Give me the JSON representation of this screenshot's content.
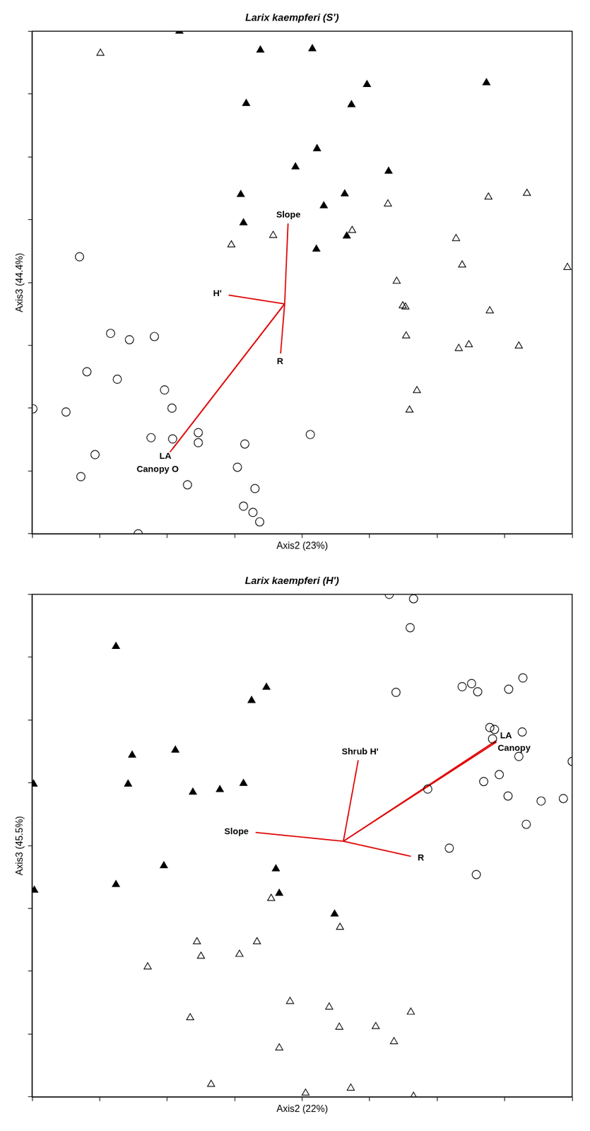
{
  "chart_data": [
    {
      "type": "scatter",
      "title": "Larix kaempferi (S')",
      "x_label": "Axis2 (23%)",
      "y_label": "Axis3 (44.4%)",
      "xlim": [
        0,
        8
      ],
      "ylim": [
        0,
        8
      ],
      "xticks": [
        0,
        1,
        2,
        3,
        4,
        5,
        6,
        7,
        8
      ],
      "yticks": [
        0,
        1,
        2,
        3,
        4,
        5,
        6,
        7,
        8
      ],
      "tick_labels": false,
      "grid": false,
      "series": [
        {
          "color": "#000000",
          "marker": "filled_triangle",
          "values": [
            [
              2.18,
              8.0
            ],
            [
              3.38,
              7.7
            ],
            [
              4.15,
              7.72
            ],
            [
              4.96,
              7.15
            ],
            [
              6.73,
              7.18
            ],
            [
              3.17,
              6.85
            ],
            [
              4.73,
              6.83
            ],
            [
              4.22,
              6.13
            ],
            [
              3.9,
              5.84
            ],
            [
              5.28,
              5.77
            ],
            [
              3.09,
              5.4
            ],
            [
              4.63,
              5.41
            ],
            [
              4.32,
              5.22
            ],
            [
              3.13,
              4.95
            ],
            [
              4.66,
              4.74
            ],
            [
              4.21,
              4.53
            ]
          ]
        },
        {
          "color": "#000000",
          "marker": "open_triangle",
          "values": [
            [
              1.01,
              7.65
            ],
            [
              5.27,
              5.25
            ],
            [
              6.76,
              5.36
            ],
            [
              7.33,
              5.42
            ],
            [
              4.74,
              4.83
            ],
            [
              3.57,
              4.75
            ],
            [
              2.95,
              4.6
            ],
            [
              6.28,
              4.7
            ],
            [
              6.37,
              4.28
            ],
            [
              7.93,
              4.24
            ],
            [
              5.4,
              4.02
            ],
            [
              5.49,
              3.63
            ],
            [
              5.53,
              3.61
            ],
            [
              6.78,
              3.55
            ],
            [
              5.54,
              3.15
            ],
            [
              6.32,
              2.95
            ],
            [
              6.47,
              3.01
            ],
            [
              7.21,
              2.99
            ],
            [
              5.7,
              2.28
            ],
            [
              5.59,
              1.97
            ]
          ]
        },
        {
          "color": "#000000",
          "marker": "open_circle",
          "values": [
            [
              0.7,
              4.41
            ],
            [
              1.16,
              3.19
            ],
            [
              1.44,
              3.09
            ],
            [
              1.81,
              3.14
            ],
            [
              0.81,
              2.58
            ],
            [
              1.26,
              2.46
            ],
            [
              1.96,
              2.29
            ],
            [
              2.07,
              2.0
            ],
            [
              0.01,
              1.99
            ],
            [
              0.5,
              1.94
            ],
            [
              1.76,
              1.53
            ],
            [
              2.08,
              1.51
            ],
            [
              2.46,
              1.61
            ],
            [
              2.46,
              1.45
            ],
            [
              4.12,
              1.58
            ],
            [
              3.15,
              1.43
            ],
            [
              0.93,
              1.26
            ],
            [
              3.04,
              1.06
            ],
            [
              0.72,
              0.91
            ],
            [
              2.3,
              0.78
            ],
            [
              3.13,
              0.44
            ],
            [
              3.3,
              0.72
            ],
            [
              3.27,
              0.34
            ],
            [
              3.37,
              0.19
            ],
            [
              1.57,
              0.0
            ]
          ]
        }
      ],
      "vectors": {
        "color": "#e00000",
        "origin": [
          3.74,
          3.66
        ],
        "ends": [
          {
            "label": "Slope",
            "x": 3.79,
            "y": 4.94
          },
          {
            "label": "H'",
            "x": 2.91,
            "y": 3.8
          },
          {
            "label": "R",
            "x": 3.68,
            "y": 2.87
          },
          {
            "label": "LA",
            "x": 2.07,
            "y": 1.34
          },
          {
            "label": "Canopy O",
            "x": 2.04,
            "y": 1.3
          }
        ]
      }
    },
    {
      "type": "scatter",
      "title": "Larix kaempferi (H')",
      "x_label": "Axis2 (22%)",
      "y_label": "Axis3 (45.5%)",
      "xlim": [
        0,
        8
      ],
      "ylim": [
        0,
        8
      ],
      "xticks": [
        0,
        1,
        2,
        3,
        4,
        5,
        6,
        7,
        8
      ],
      "yticks": [
        0,
        1,
        2,
        3,
        4,
        5,
        6,
        7,
        8
      ],
      "tick_labels": false,
      "grid": false,
      "series": [
        {
          "color": "#000000",
          "marker": "filled_triangle",
          "values": [
            [
              1.24,
              7.17
            ],
            [
              3.47,
              6.52
            ],
            [
              3.25,
              6.31
            ],
            [
              1.48,
              5.44
            ],
            [
              2.12,
              5.52
            ],
            [
              0.02,
              4.98
            ],
            [
              1.42,
              4.98
            ],
            [
              2.38,
              4.85
            ],
            [
              2.78,
              4.89
            ],
            [
              3.13,
              4.99
            ],
            [
              1.95,
              3.68
            ],
            [
              3.61,
              3.63
            ],
            [
              1.24,
              3.38
            ],
            [
              0.03,
              3.29
            ],
            [
              3.66,
              3.24
            ],
            [
              4.48,
              2.91
            ]
          ]
        },
        {
          "color": "#000000",
          "marker": "open_triangle",
          "values": [
            [
              3.54,
              3.16
            ],
            [
              4.56,
              2.7
            ],
            [
              2.44,
              2.47
            ],
            [
              2.5,
              2.24
            ],
            [
              3.33,
              2.47
            ],
            [
              3.07,
              2.27
            ],
            [
              1.71,
              2.07
            ],
            [
              3.82,
              1.52
            ],
            [
              4.4,
              1.43
            ],
            [
              4.55,
              1.11
            ],
            [
              2.34,
              1.26
            ],
            [
              3.66,
              0.78
            ],
            [
              5.61,
              1.35
            ],
            [
              5.09,
              1.12
            ],
            [
              5.36,
              0.88
            ],
            [
              2.65,
              0.2
            ],
            [
              4.05,
              0.06
            ],
            [
              4.72,
              0.14
            ],
            [
              5.65,
              0.01
            ]
          ]
        },
        {
          "color": "#000000",
          "marker": "open_circle",
          "values": [
            [
              5.29,
              8.0
            ],
            [
              5.65,
              7.93
            ],
            [
              5.6,
              7.47
            ],
            [
              5.39,
              6.44
            ],
            [
              6.37,
              6.53
            ],
            [
              6.51,
              6.58
            ],
            [
              6.6,
              6.45
            ],
            [
              7.06,
              6.49
            ],
            [
              7.27,
              6.67
            ],
            [
              6.78,
              5.88
            ],
            [
              6.85,
              5.85
            ],
            [
              7.26,
              5.81
            ],
            [
              6.82,
              5.7
            ],
            [
              7.21,
              5.42
            ],
            [
              6.92,
              5.13
            ],
            [
              6.69,
              5.02
            ],
            [
              5.86,
              4.9
            ],
            [
              7.05,
              4.79
            ],
            [
              7.54,
              4.71
            ],
            [
              7.87,
              4.75
            ],
            [
              8.0,
              5.34
            ],
            [
              7.32,
              4.34
            ],
            [
              6.18,
              3.96
            ],
            [
              6.58,
              3.54
            ]
          ]
        }
      ],
      "vectors": {
        "color": "#e00000",
        "origin": [
          4.61,
          4.07
        ],
        "ends": [
          {
            "label": "Slope",
            "x": 3.31,
            "y": 4.21
          },
          {
            "label": "Shrub H'",
            "x": 4.83,
            "y": 5.36
          },
          {
            "label": "R",
            "x": 5.61,
            "y": 3.83
          },
          {
            "label": "LA",
            "x": 6.87,
            "y": 5.67
          },
          {
            "label": "Canopy",
            "x": 6.88,
            "y": 5.65
          }
        ]
      }
    }
  ]
}
